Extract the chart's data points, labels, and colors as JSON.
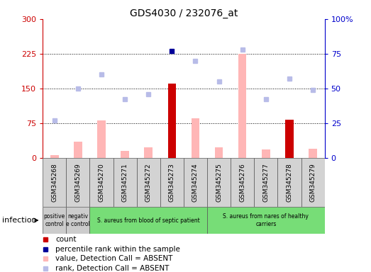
{
  "title": "GDS4030 / 232076_at",
  "samples": [
    "GSM345268",
    "GSM345269",
    "GSM345270",
    "GSM345271",
    "GSM345272",
    "GSM345273",
    "GSM345274",
    "GSM345275",
    "GSM345276",
    "GSM345277",
    "GSM345278",
    "GSM345279"
  ],
  "pink_values": [
    5,
    35,
    80,
    15,
    22,
    160,
    85,
    22,
    225,
    18,
    82,
    20
  ],
  "dark_red_indices": [
    5,
    10
  ],
  "dark_red_values": [
    160,
    82
  ],
  "rank_vals": [
    27,
    50,
    60,
    42,
    46,
    77,
    70,
    55,
    78,
    42,
    57,
    49
  ],
  "dark_blue_index": 5,
  "dark_blue_rank": 77,
  "ylim_left": [
    0,
    300
  ],
  "ylim_right": [
    0,
    100
  ],
  "yticks_left": [
    0,
    75,
    150,
    225,
    300
  ],
  "ytick_labels_left": [
    "0",
    "75",
    "150",
    "225",
    "300"
  ],
  "yticks_right": [
    0,
    25,
    50,
    75,
    100
  ],
  "ytick_labels_right": [
    "0",
    "25",
    "50",
    "75",
    "100%"
  ],
  "hlines": [
    75,
    150,
    225
  ],
  "groups": [
    {
      "start": 0,
      "end": 0,
      "color": "#cccccc",
      "label": "positive\ncontrol"
    },
    {
      "start": 1,
      "end": 1,
      "color": "#cccccc",
      "label": "negativ\ne control"
    },
    {
      "start": 2,
      "end": 6,
      "color": "#77dd77",
      "label": "S. aureus from blood of septic patient"
    },
    {
      "start": 7,
      "end": 11,
      "color": "#77dd77",
      "label": "S. aureus from nares of healthy\ncarriers"
    }
  ],
  "infection_label": "infection",
  "legend_items": [
    {
      "color": "#cc0000",
      "label": "count"
    },
    {
      "color": "#000099",
      "label": "percentile rank within the sample"
    },
    {
      "color": "#ffb6b6",
      "label": "value, Detection Call = ABSENT"
    },
    {
      "color": "#b8bce8",
      "label": "rank, Detection Call = ABSENT"
    }
  ],
  "bar_width": 0.35,
  "background_color": "#ffffff",
  "left_axis_color": "#cc0000",
  "right_axis_color": "#0000cc"
}
